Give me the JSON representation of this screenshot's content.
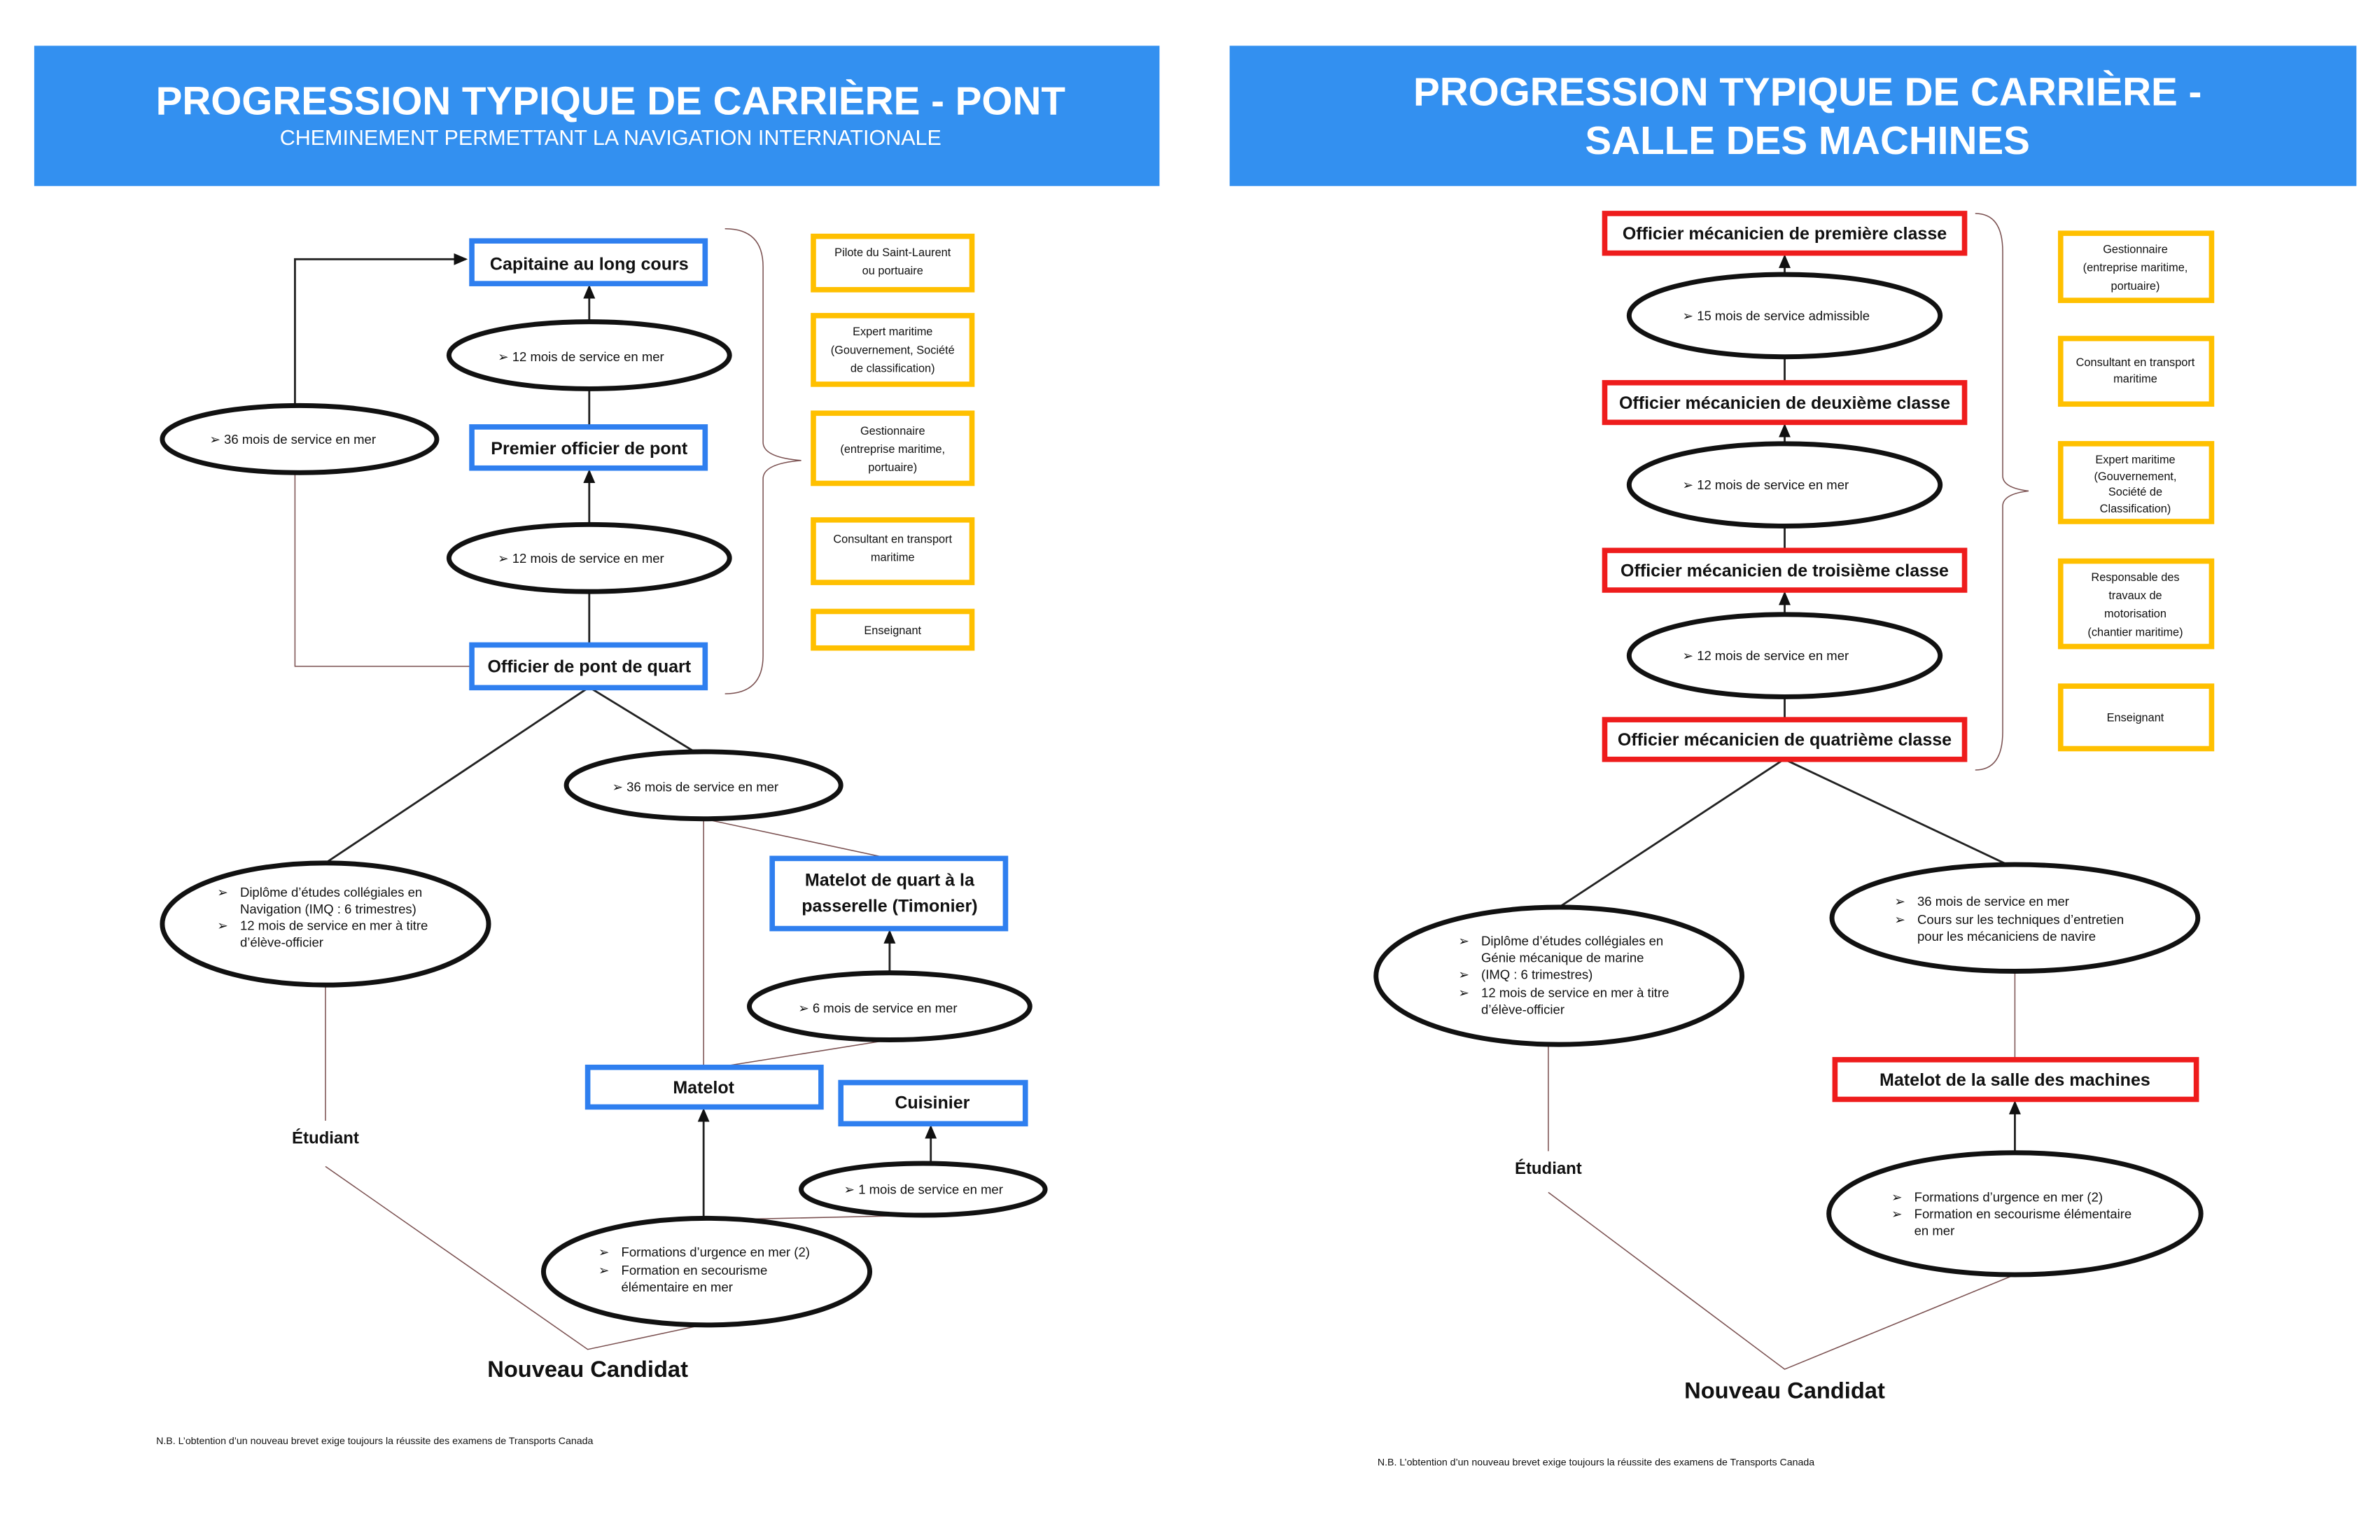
{
  "colors": {
    "header": "#3390f0",
    "deck_box": "#2f7fef",
    "engine_box": "#ee1c1c",
    "alt_box": "#ffc000"
  },
  "bullet_icon": "arrowhead-bullet",
  "left": {
    "title": "PROGRESSION TYPIQUE DE CARRIÈRE - PONT",
    "subtitle": "CHEMINEMENT PERMETTANT LA NAVIGATION INTERNATIONALE",
    "capitaine": "Capitaine au long cours",
    "premier": "Premier officier de pont",
    "quart": "Officier de pont de quart",
    "timonier": [
      "Matelot de quart à la",
      "passerelle (Timonier)"
    ],
    "matelot": "Matelot",
    "cuisinier": "Cuisinier",
    "e12a": "12 mois de service en mer",
    "e12b": "12 mois de service en mer",
    "e36a": "36 mois de service en mer",
    "e36b": "36 mois de service en mer",
    "e6": "6 mois de service en mer",
    "e1": "1 mois de service en mer",
    "diplome": [
      "Diplôme d’études collégiales en",
      "Navigation (IMQ : 6 trimestres)",
      "12 mois de service en mer à titre",
      "d’élève-officier"
    ],
    "formations": [
      "Formations d’urgence en mer (2)",
      "Formation en secourisme",
      "élémentaire en mer"
    ],
    "etudiant": "Étudiant",
    "nouveau": "Nouveau Candidat",
    "nb": "N.B. L’obtention d’un nouveau brevet exige toujours la réussite des examens de Transports Canada",
    "alternatives": [
      [
        "Pilote du Saint-Laurent",
        "ou portuaire"
      ],
      [
        "Expert maritime",
        "(Gouvernement, Société",
        "de classification)"
      ],
      [
        "Gestionnaire",
        "(entreprise maritime,",
        "portuaire)"
      ],
      [
        "Consultant en transport",
        "maritime"
      ],
      [
        "Enseignant"
      ]
    ]
  },
  "right": {
    "title": [
      "PROGRESSION TYPIQUE DE CARRIÈRE -",
      "SALLE DES MACHINES"
    ],
    "premiere": "Officier mécanicien de première classe",
    "deuxieme": "Officier mécanicien de deuxième classe",
    "troisieme": "Officier mécanicien de troisième classe",
    "quatrieme": "Officier mécanicien de quatrième classe",
    "matelot": "Matelot de la salle des machines",
    "e15": "15 mois de service admissible",
    "e12a": "12 mois de service en mer",
    "e12b": "12 mois de service en mer",
    "diplome": [
      "Diplôme d’études collégiales en",
      "Génie mécanique de marine",
      "(IMQ : 6 trimestres)",
      "12 mois de service en mer à titre",
      "d’élève-officier"
    ],
    "service": [
      "36 mois de service en mer",
      "Cours sur les techniques d’entretien",
      "pour les mécaniciens de navire"
    ],
    "formations": [
      "Formations d’urgence en mer (2)",
      "Formation en secourisme élémentaire",
      "en mer"
    ],
    "etudiant": "Étudiant",
    "nouveau": "Nouveau Candidat",
    "nb": "N.B. L’obtention d’un nouveau brevet exige toujours la réussite des examens de Transports Canada",
    "alternatives": [
      [
        "Gestionnaire",
        "(entreprise maritime,",
        "portuaire)"
      ],
      [
        "Consultant en transport",
        "maritime"
      ],
      [
        "Expert maritime",
        "(Gouvernement,",
        "Société de",
        "Classification)"
      ],
      [
        "Responsable des",
        "travaux de",
        "motorisation",
        "(chantier maritime)"
      ],
      [
        "Enseignant"
      ]
    ]
  }
}
